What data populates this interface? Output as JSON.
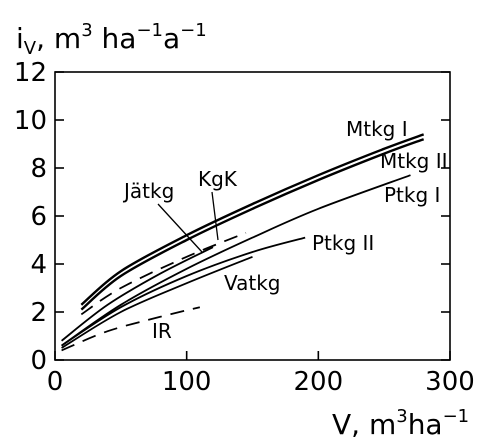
{
  "chart_data": {
    "type": "line",
    "ylabel": "i",
    "ylabel_sub": "V",
    "ylabel_unit": ", m",
    "ylabel_sup1": "3",
    "ylabel_ha": " ha",
    "ylabel_sup2": "−1",
    "ylabel_a": "a",
    "ylabel_sup3": "−1",
    "xlabel": "V,  m",
    "xlabel_sup1": "3",
    "xlabel_ha": "ha",
    "xlabel_sup2": "−1",
    "xlim": [
      0,
      300
    ],
    "ylim": [
      0,
      12
    ],
    "xticks": [
      0,
      100,
      200,
      300
    ],
    "yticks": [
      0,
      2,
      4,
      6,
      8,
      10,
      12
    ],
    "series": [
      {
        "name": "Mtkg I",
        "style": "solid-thick",
        "x": [
          20,
          50,
          100,
          150,
          200,
          250,
          280
        ],
        "y": [
          2.3,
          3.7,
          5.2,
          6.5,
          7.7,
          8.8,
          9.4
        ]
      },
      {
        "name": "Mtkg II",
        "style": "solid-thick",
        "x": [
          20,
          50,
          100,
          150,
          200,
          250,
          280
        ],
        "y": [
          2.1,
          3.5,
          5.0,
          6.3,
          7.5,
          8.6,
          9.2
        ]
      },
      {
        "name": "KgK",
        "style": "dashed",
        "x": [
          20,
          50,
          100,
          145
        ],
        "y": [
          1.9,
          3.0,
          4.3,
          5.3
        ]
      },
      {
        "name": "Jätkg",
        "style": "solid",
        "x": [
          5,
          40,
          80,
          120
        ],
        "y": [
          0.8,
          2.3,
          3.6,
          4.7
        ]
      },
      {
        "name": "Ptkg I",
        "style": "solid",
        "x": [
          5,
          50,
          100,
          150,
          200,
          270
        ],
        "y": [
          0.6,
          2.3,
          3.8,
          5.1,
          6.3,
          7.7
        ]
      },
      {
        "name": "Ptkg II",
        "style": "solid",
        "x": [
          5,
          50,
          100,
          150,
          190
        ],
        "y": [
          0.6,
          2.2,
          3.5,
          4.5,
          5.1
        ]
      },
      {
        "name": "Vatkg",
        "style": "solid",
        "x": [
          5,
          50,
          100,
          150
        ],
        "y": [
          0.5,
          2.0,
          3.2,
          4.3
        ]
      },
      {
        "name": "IR",
        "style": "dashed",
        "x": [
          5,
          40,
          80,
          110
        ],
        "y": [
          0.4,
          1.2,
          1.8,
          2.2
        ]
      }
    ],
    "annotations": [
      "Mtkg I",
      "Mtkg II",
      "Ptkg I",
      "Ptkg II",
      "KgK",
      "Jätkg",
      "Vatkg",
      "IR"
    ]
  }
}
